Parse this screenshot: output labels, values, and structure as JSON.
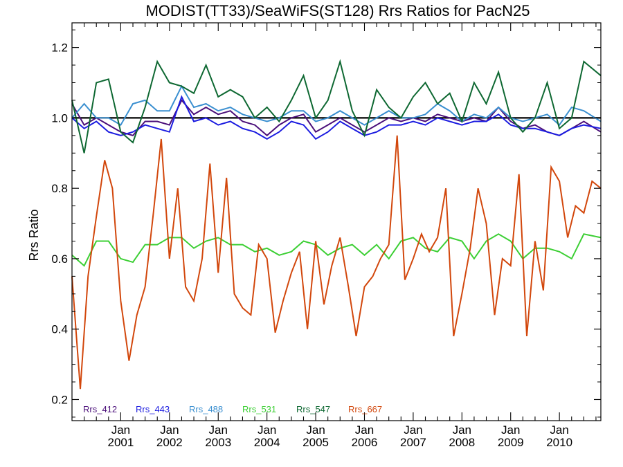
{
  "chart_data": {
    "type": "line",
    "title": "MODIST(TT33)/SeaWiFS(ST128)  Rrs Ratios for PacN25",
    "ylabel": "Rrs Ratio",
    "xlabel": "",
    "xlim": [
      2000.0,
      2010.85
    ],
    "ylim": [
      0.14,
      1.27
    ],
    "yticks": [
      0.2,
      0.4,
      0.6,
      0.8,
      1.0,
      1.2
    ],
    "ytick_labels": [
      "0.2",
      "0.4",
      "0.6",
      "0.8",
      "1.0",
      "1.2"
    ],
    "xticks": [
      {
        "x": 2001.0,
        "top": "Jan",
        "bottom": "2001"
      },
      {
        "x": 2002.0,
        "top": "Jan",
        "bottom": "2002"
      },
      {
        "x": 2003.0,
        "top": "Jan",
        "bottom": "2003"
      },
      {
        "x": 2004.0,
        "top": "Jan",
        "bottom": "2004"
      },
      {
        "x": 2005.0,
        "top": "Jan",
        "bottom": "2005"
      },
      {
        "x": 2006.0,
        "top": "Jan",
        "bottom": "2006"
      },
      {
        "x": 2007.0,
        "top": "Jan",
        "bottom": "2007"
      },
      {
        "x": 2008.0,
        "top": "Jan",
        "bottom": "2008"
      },
      {
        "x": 2009.0,
        "top": "Jan",
        "bottom": "2009"
      },
      {
        "x": 2010.0,
        "top": "Jan",
        "bottom": "2010"
      }
    ],
    "reference_line": {
      "y": 1.0,
      "color": "#000000"
    },
    "grid": false,
    "legend_position": "bottom-left",
    "series": [
      {
        "name": "Rrs_412",
        "color": "#4b0f7a",
        "x": [
          2000.0,
          2000.25,
          2000.5,
          2000.75,
          2001.0,
          2001.25,
          2001.5,
          2001.75,
          2002.0,
          2002.25,
          2002.5,
          2002.75,
          2003.0,
          2003.25,
          2003.5,
          2003.75,
          2004.0,
          2004.25,
          2004.5,
          2004.75,
          2005.0,
          2005.25,
          2005.5,
          2005.75,
          2006.0,
          2006.25,
          2006.5,
          2006.75,
          2007.0,
          2007.25,
          2007.5,
          2007.75,
          2008.0,
          2008.25,
          2008.5,
          2008.75,
          2009.0,
          2009.25,
          2009.5,
          2009.75,
          2010.0,
          2010.25,
          2010.5,
          2010.85
        ],
        "y": [
          1.04,
          0.98,
          1.0,
          0.98,
          0.96,
          0.95,
          0.99,
          0.99,
          0.98,
          1.05,
          1.01,
          1.03,
          1.01,
          1.02,
          0.99,
          0.98,
          0.95,
          0.98,
          1.0,
          1.01,
          0.96,
          0.98,
          1.0,
          0.98,
          0.96,
          0.98,
          1.0,
          0.99,
          1.0,
          0.99,
          1.01,
          1.0,
          0.99,
          1.0,
          0.99,
          1.03,
          0.99,
          0.97,
          0.98,
          0.96,
          0.95,
          0.97,
          0.99,
          0.96
        ]
      },
      {
        "name": "Rrs_443",
        "color": "#1c1ce0",
        "x": [
          2000.0,
          2000.25,
          2000.5,
          2000.75,
          2001.0,
          2001.25,
          2001.5,
          2001.75,
          2002.0,
          2002.25,
          2002.5,
          2002.75,
          2003.0,
          2003.25,
          2003.5,
          2003.75,
          2004.0,
          2004.25,
          2004.5,
          2004.75,
          2005.0,
          2005.25,
          2005.5,
          2005.75,
          2006.0,
          2006.25,
          2006.5,
          2006.75,
          2007.0,
          2007.25,
          2007.5,
          2007.75,
          2008.0,
          2008.25,
          2008.5,
          2008.75,
          2009.0,
          2009.25,
          2009.5,
          2009.75,
          2010.0,
          2010.25,
          2010.5,
          2010.85
        ],
        "y": [
          1.0,
          0.97,
          0.99,
          0.96,
          0.95,
          0.96,
          0.98,
          0.97,
          0.96,
          1.06,
          0.99,
          1.0,
          0.98,
          0.99,
          0.97,
          0.96,
          0.94,
          0.96,
          0.99,
          0.98,
          0.94,
          0.96,
          0.99,
          0.97,
          0.95,
          0.96,
          0.98,
          0.98,
          0.99,
          0.98,
          1.0,
          0.99,
          0.98,
          0.99,
          0.99,
          1.01,
          0.98,
          0.97,
          0.97,
          0.96,
          0.95,
          0.97,
          0.98,
          0.97
        ]
      },
      {
        "name": "Rrs_488",
        "color": "#3a8fd0",
        "x": [
          2000.0,
          2000.25,
          2000.5,
          2000.75,
          2001.0,
          2001.25,
          2001.5,
          2001.75,
          2002.0,
          2002.25,
          2002.5,
          2002.75,
          2003.0,
          2003.25,
          2003.5,
          2003.75,
          2004.0,
          2004.25,
          2004.5,
          2004.75,
          2005.0,
          2005.25,
          2005.5,
          2005.75,
          2006.0,
          2006.25,
          2006.5,
          2006.75,
          2007.0,
          2007.25,
          2007.5,
          2007.75,
          2008.0,
          2008.25,
          2008.5,
          2008.75,
          2009.0,
          2009.25,
          2009.5,
          2009.75,
          2010.0,
          2010.25,
          2010.5,
          2010.85
        ],
        "y": [
          1.0,
          1.04,
          1.0,
          1.0,
          0.98,
          1.04,
          1.05,
          1.02,
          1.02,
          1.09,
          1.03,
          1.04,
          1.02,
          1.03,
          1.01,
          1.0,
          0.99,
          1.0,
          1.02,
          1.02,
          0.99,
          1.0,
          1.02,
          1.0,
          0.98,
          1.0,
          1.02,
          1.0,
          1.0,
          1.01,
          1.04,
          1.02,
          0.99,
          1.01,
          1.0,
          1.03,
          1.0,
          0.99,
          1.0,
          1.01,
          0.98,
          1.03,
          1.02,
          0.99
        ]
      },
      {
        "name": "Rrs_531",
        "color": "#3ccf34",
        "x": [
          2000.0,
          2000.25,
          2000.5,
          2000.75,
          2001.0,
          2001.25,
          2001.5,
          2001.75,
          2002.0,
          2002.25,
          2002.5,
          2002.75,
          2003.0,
          2003.25,
          2003.5,
          2003.75,
          2004.0,
          2004.25,
          2004.5,
          2004.75,
          2005.0,
          2005.25,
          2005.5,
          2005.75,
          2006.0,
          2006.25,
          2006.5,
          2006.75,
          2007.0,
          2007.25,
          2007.5,
          2007.75,
          2008.0,
          2008.25,
          2008.5,
          2008.75,
          2009.0,
          2009.25,
          2009.5,
          2009.75,
          2010.0,
          2010.25,
          2010.5,
          2010.85
        ],
        "y": [
          0.61,
          0.58,
          0.65,
          0.65,
          0.6,
          0.59,
          0.64,
          0.64,
          0.66,
          0.66,
          0.63,
          0.65,
          0.66,
          0.64,
          0.64,
          0.62,
          0.63,
          0.61,
          0.62,
          0.65,
          0.64,
          0.61,
          0.63,
          0.64,
          0.61,
          0.64,
          0.6,
          0.65,
          0.66,
          0.63,
          0.62,
          0.66,
          0.65,
          0.6,
          0.65,
          0.67,
          0.65,
          0.6,
          0.63,
          0.63,
          0.62,
          0.6,
          0.67,
          0.66
        ]
      },
      {
        "name": "Rrs_547",
        "color": "#0e6832",
        "x": [
          2000.0,
          2000.25,
          2000.5,
          2000.75,
          2001.0,
          2001.25,
          2001.5,
          2001.75,
          2002.0,
          2002.25,
          2002.5,
          2002.75,
          2003.0,
          2003.25,
          2003.5,
          2003.75,
          2004.0,
          2004.25,
          2004.5,
          2004.75,
          2005.0,
          2005.25,
          2005.5,
          2005.75,
          2006.0,
          2006.25,
          2006.5,
          2006.75,
          2007.0,
          2007.25,
          2007.5,
          2007.75,
          2008.0,
          2008.25,
          2008.5,
          2008.75,
          2009.0,
          2009.25,
          2009.5,
          2009.75,
          2010.0,
          2010.25,
          2010.5,
          2010.85
        ],
        "y": [
          1.05,
          0.9,
          1.1,
          1.11,
          0.96,
          0.93,
          1.03,
          1.16,
          1.1,
          1.09,
          1.07,
          1.15,
          1.06,
          1.08,
          1.06,
          1.0,
          1.03,
          0.99,
          1.05,
          1.12,
          1.0,
          1.05,
          1.16,
          1.02,
          0.95,
          1.08,
          1.03,
          1.0,
          1.06,
          1.1,
          1.04,
          1.07,
          0.99,
          1.1,
          1.04,
          1.13,
          1.0,
          0.96,
          1.0,
          1.1,
          0.97,
          1.0,
          1.16,
          1.12
        ]
      },
      {
        "name": "Rrs_667",
        "color": "#d2470c",
        "x": [
          2000.0,
          2000.17,
          2000.33,
          2000.5,
          2000.67,
          2000.83,
          2001.0,
          2001.17,
          2001.33,
          2001.5,
          2001.67,
          2001.83,
          2002.0,
          2002.17,
          2002.33,
          2002.5,
          2002.67,
          2002.83,
          2003.0,
          2003.17,
          2003.33,
          2003.5,
          2003.67,
          2003.83,
          2004.0,
          2004.17,
          2004.33,
          2004.5,
          2004.67,
          2004.83,
          2005.0,
          2005.17,
          2005.33,
          2005.5,
          2005.67,
          2005.83,
          2006.0,
          2006.17,
          2006.33,
          2006.5,
          2006.67,
          2006.83,
          2007.0,
          2007.17,
          2007.33,
          2007.5,
          2007.67,
          2007.83,
          2008.0,
          2008.17,
          2008.33,
          2008.5,
          2008.67,
          2008.83,
          2009.0,
          2009.17,
          2009.33,
          2009.5,
          2009.67,
          2009.83,
          2010.0,
          2010.17,
          2010.33,
          2010.5,
          2010.67,
          2010.85
        ],
        "y": [
          0.55,
          0.23,
          0.55,
          0.72,
          0.88,
          0.8,
          0.48,
          0.31,
          0.44,
          0.52,
          0.73,
          0.94,
          0.6,
          0.8,
          0.52,
          0.48,
          0.6,
          0.87,
          0.56,
          0.83,
          0.5,
          0.46,
          0.44,
          0.64,
          0.6,
          0.39,
          0.48,
          0.56,
          0.62,
          0.4,
          0.65,
          0.47,
          0.58,
          0.66,
          0.52,
          0.38,
          0.52,
          0.55,
          0.6,
          0.64,
          0.95,
          0.54,
          0.6,
          0.67,
          0.62,
          0.66,
          0.8,
          0.38,
          0.5,
          0.63,
          0.8,
          0.7,
          0.44,
          0.6,
          0.58,
          0.84,
          0.38,
          0.65,
          0.51,
          0.86,
          0.82,
          0.66,
          0.75,
          0.73,
          0.82,
          0.8
        ]
      }
    ]
  }
}
